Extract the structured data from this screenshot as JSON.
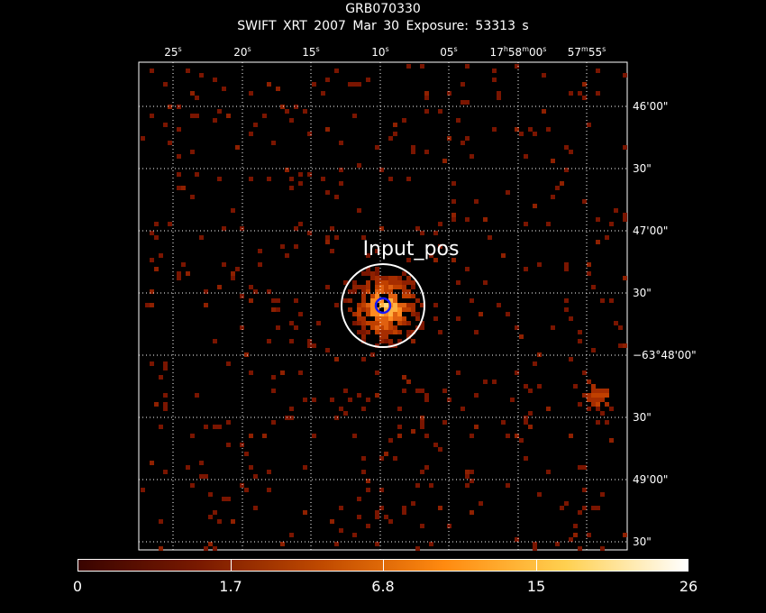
{
  "header": {
    "title": "GRB070330",
    "subtitle": "SWIFT XRT   2007 Mar 30    Exposure: 53313 s"
  },
  "axes": {
    "x_ticks": [
      {
        "label": "25",
        "unit": "s",
        "pos": 192
      },
      {
        "label": "20",
        "unit": "s",
        "pos": 269
      },
      {
        "label": "15",
        "unit": "s",
        "pos": 345
      },
      {
        "label": "10",
        "unit": "s",
        "pos": 422
      },
      {
        "label": "05",
        "unit": "s",
        "pos": 498
      },
      {
        "label": "17h58m00s",
        "unit": "",
        "pos": 575
      },
      {
        "label": "57m55s",
        "unit": "",
        "pos": 651
      }
    ],
    "y_ticks": [
      {
        "label": "46'00\"",
        "pos": 118
      },
      {
        "label": "30\"",
        "pos": 187
      },
      {
        "label": "47'00\"",
        "pos": 256
      },
      {
        "label": "30\"",
        "pos": 325
      },
      {
        "label": "−63°48'00\"",
        "pos": 394
      },
      {
        "label": "30\"",
        "pos": 463
      },
      {
        "label": "49'00\"",
        "pos": 532
      },
      {
        "label": "30\"",
        "pos": 601
      }
    ]
  },
  "annotations": {
    "region_label": "Input_pos"
  },
  "colorbar": {
    "ticks": [
      "0",
      "1.7",
      "6.8",
      "15",
      "26"
    ],
    "colors": [
      "#3a0400",
      "#7a1a00",
      "#c04a00",
      "#ff8a10",
      "#ffd050",
      "#ffffff"
    ]
  },
  "colors": {
    "background": "#000000",
    "region_outer": "#ffffff",
    "region_inner": "#1a1aff",
    "grid": "#ffffff"
  }
}
